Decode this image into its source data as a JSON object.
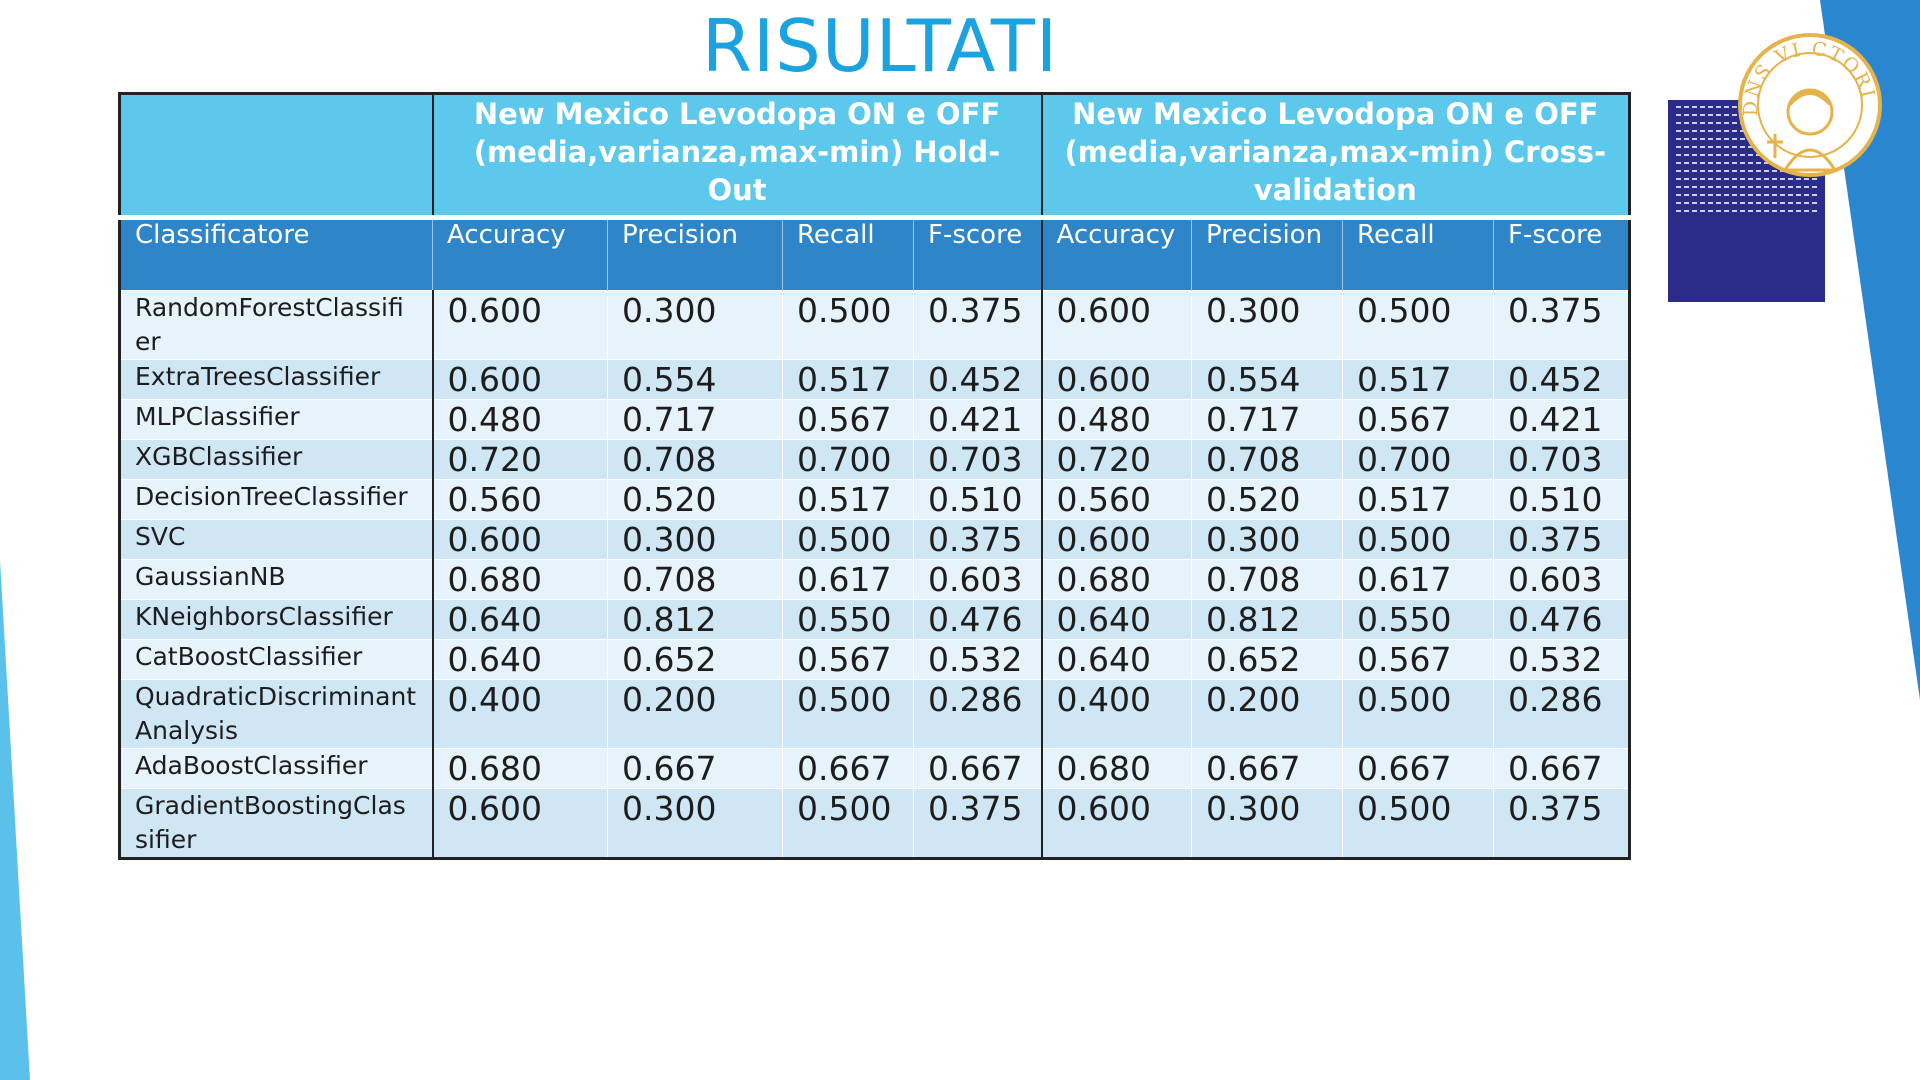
{
  "slide": {
    "title": "RISULTATI"
  },
  "table": {
    "group_headers": [
      "New Mexico Levodopa ON e OFF (media,varianza,max-min) Hold-Out",
      "New Mexico  Levodopa ON e OFF (media,varianza,max-min) Cross-validation"
    ],
    "columns": [
      "Classificatore",
      "Accuracy",
      "Precision",
      "Recall",
      "F-score",
      "Accuracy",
      "Precision",
      "Recall",
      "F-score"
    ],
    "rows": [
      [
        "RandomForestClassifier",
        "0.600",
        "0.300",
        "0.500",
        "0.375",
        "0.600",
        "0.300",
        "0.500",
        "0.375"
      ],
      [
        "ExtraTreesClassifier",
        "0.600",
        "0.554",
        "0.517",
        "0.452",
        "0.600",
        "0.554",
        "0.517",
        "0.452"
      ],
      [
        "MLPClassifier",
        "0.480",
        "0.717",
        "0.567",
        "0.421",
        "0.480",
        "0.717",
        "0.567",
        "0.421"
      ],
      [
        "XGBClassifier",
        "0.720",
        "0.708",
        "0.700",
        "0.703",
        "0.720",
        "0.708",
        "0.700",
        "0.703"
      ],
      [
        "DecisionTreeClassifier",
        "0.560",
        "0.520",
        "0.517",
        "0.510",
        "0.560",
        "0.520",
        "0.517",
        "0.510"
      ],
      [
        "SVC",
        "0.600",
        "0.300",
        "0.500",
        "0.375",
        "0.600",
        "0.300",
        "0.500",
        "0.375"
      ],
      [
        "GaussianNB",
        "0.680",
        "0.708",
        "0.617",
        "0.603",
        "0.680",
        "0.708",
        "0.617",
        "0.603"
      ],
      [
        "KNeighborsClassifier",
        "0.640",
        "0.812",
        "0.550",
        "0.476",
        "0.640",
        "0.812",
        "0.550",
        "0.476"
      ],
      [
        "CatBoostClassifier",
        "0.640",
        "0.652",
        "0.567",
        "0.532",
        "0.640",
        "0.652",
        "0.567",
        "0.532"
      ],
      [
        "QuadraticDiscriminant Analysis",
        "0.400",
        "0.200",
        "0.500",
        "0.286",
        "0.400",
        "0.200",
        "0.500",
        "0.286"
      ],
      [
        "AdaBoostClassifier",
        "0.680",
        "0.667",
        "0.667",
        "0.667",
        "0.680",
        "0.667",
        "0.667",
        "0.667"
      ],
      [
        "GradientBoostingClassifier",
        "0.600",
        "0.300",
        "0.500",
        "0.375",
        "0.600",
        "0.300",
        "0.500",
        "0.375"
      ]
    ]
  },
  "logo": {
    "seal_text": "DNS VI CTORIA",
    "colors": {
      "seal": "#e6b34a",
      "manuscript": "#2b2c8a"
    }
  },
  "colors": {
    "title": "#1aa3e0",
    "group_header_bg": "#5bc8ec",
    "column_header_bg": "#2e86c8",
    "row_light": "#e7f3fa",
    "row_dark": "#cfe6f5",
    "accent": "#2a86cf"
  }
}
